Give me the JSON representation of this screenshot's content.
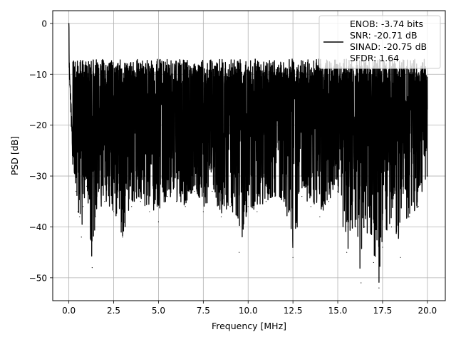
{
  "chart_data": {
    "type": "line",
    "xlabel": "Frequency [MHz]",
    "ylabel": "PSD [dB]",
    "xlim": [
      -0.9,
      21.0
    ],
    "ylim": [
      -54.5,
      2.5
    ],
    "xticks": [
      0.0,
      2.5,
      5.0,
      7.5,
      10.0,
      12.5,
      15.0,
      17.5,
      20.0
    ],
    "xtick_labels": [
      "0.0",
      "2.5",
      "5.0",
      "7.5",
      "10.0",
      "12.5",
      "15.0",
      "17.5",
      "20.0"
    ],
    "yticks": [
      0,
      -10,
      -20,
      -30,
      -40,
      -50
    ],
    "ytick_labels": [
      "0",
      "−10",
      "−20",
      "−30",
      "−40",
      "−50"
    ],
    "grid": true,
    "legend_position": "top-right",
    "legend": [
      "ENOB: -3.74 bits",
      "SNR: -20.71 dB",
      "SINAD: -20.75 dB",
      "SFDR: 1.64"
    ],
    "series": [
      {
        "color": "#000000",
        "x": [
          0.0,
          0.02,
          0.05,
          0.1,
          0.15,
          0.2,
          0.3,
          0.4,
          0.5,
          0.6,
          0.7,
          0.8,
          1.0,
          1.3,
          1.5,
          2.0,
          2.5,
          3.0,
          3.5,
          4.0,
          4.5,
          5.0,
          5.5,
          6.0,
          6.5,
          7.0,
          7.5,
          8.0,
          8.5,
          9.0,
          9.5,
          10.0,
          10.5,
          11.0,
          11.5,
          12.0,
          12.5,
          13.0,
          13.5,
          14.0,
          14.5,
          15.0,
          15.5,
          16.0,
          16.3,
          16.5,
          17.0,
          17.3,
          17.5,
          18.0,
          18.5,
          19.0,
          19.5,
          20.0
        ],
        "y": [
          0.0,
          -8,
          -12,
          -15,
          -20,
          -24,
          -28,
          -33,
          -37,
          -38,
          -42,
          -36,
          -32,
          -48,
          -38,
          -35,
          -37,
          -42,
          -36,
          -35,
          -37,
          -39,
          -34,
          -35,
          -36,
          -33,
          -37,
          -33,
          -38,
          -36,
          -45,
          -36,
          -37,
          -35,
          -34,
          -35,
          -46,
          -34,
          -36,
          -38,
          -35,
          -33,
          -45,
          -40,
          -51,
          -40,
          -47,
          -52,
          -44,
          -40,
          -46,
          -38,
          -36,
          -30
        ],
        "band_low": -30,
        "band_high": -9
      }
    ]
  }
}
